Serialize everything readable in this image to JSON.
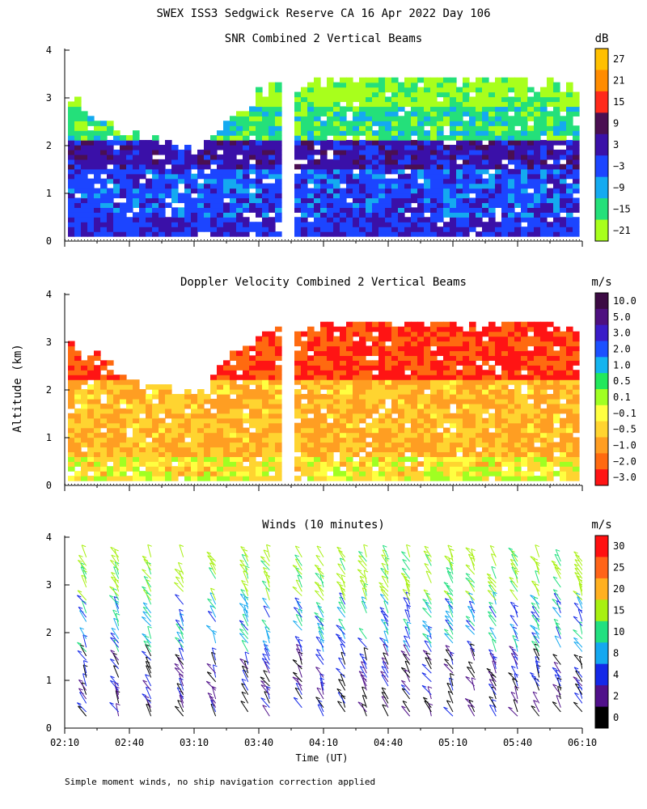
{
  "figure": {
    "title": "SWEX ISS3 Sedgwick Reserve CA  16 Apr 2022 Day 106",
    "ylabel": "Altitude (km)",
    "xlabel": "Time (UT)",
    "footnote": "Simple moment winds, no ship navigation correction applied"
  },
  "panels": [
    {
      "title": "SNR Combined 2 Vertical Beams",
      "unit": "dB",
      "colorbar": {
        "labels": [
          "27",
          "21",
          "15",
          "9",
          "3",
          "−3",
          "−9",
          "−15",
          "−21"
        ],
        "colors": [
          "#ffc000",
          "#ff8c00",
          "#ff2a1a",
          "#4a0f52",
          "#3a10a8",
          "#1c45ff",
          "#14aaf0",
          "#24e07a",
          "#a8ff1c"
        ]
      }
    },
    {
      "title": "Doppler Velocity Combined 2 Vertical Beams",
      "unit": "m/s",
      "colorbar": {
        "labels": [
          "10.0",
          "5.0",
          "3.0",
          "2.0",
          "1.0",
          "0.5",
          "0.1",
          "−0.1",
          "−0.5",
          "−1.0",
          "−2.0",
          "−3.0"
        ],
        "colors": [
          "#3c0a44",
          "#4e1080",
          "#3a1cc8",
          "#1c50ff",
          "#14b4ef",
          "#22e85c",
          "#a0ff22",
          "#ffff40",
          "#ffd430",
          "#ff9e22",
          "#ff6a10",
          "#ff1414"
        ]
      }
    },
    {
      "title": "Winds (10 minutes)",
      "unit": "m/s",
      "colorbar": {
        "labels": [
          "30",
          "25",
          "20",
          "15",
          "10",
          "8",
          "4",
          "2",
          "0"
        ],
        "colors": [
          "#ff1010",
          "#ff6418",
          "#ffb020",
          "#a8f010",
          "#22e080",
          "#14a8f0",
          "#1428e8",
          "#50108a",
          "#000000"
        ]
      }
    }
  ],
  "axes": {
    "y_ticks": [
      "0",
      "1",
      "2",
      "3",
      "4"
    ],
    "x_ticks": [
      "02:10",
      "02:40",
      "03:10",
      "03:40",
      "04:10",
      "04:40",
      "05:10",
      "05:40",
      "06:10"
    ]
  },
  "chart_data": [
    {
      "type": "heatmap",
      "title": "SNR Combined 2 Vertical Beams",
      "unit": "dB",
      "x_range": [
        "02:10",
        "06:10"
      ],
      "ylim": [
        0,
        4
      ],
      "colorscale_levels": [
        -21,
        -15,
        -9,
        -3,
        3,
        9,
        15,
        21,
        27
      ],
      "data_top_km": [
        {
          "time": "02:10",
          "top": 2.9
        },
        {
          "time": "02:40",
          "top": 2.2
        },
        {
          "time": "03:10",
          "top": 1.8
        },
        {
          "time": "03:30",
          "top": 2.8
        },
        {
          "time": "03:40",
          "top": 3.1
        },
        {
          "time": "04:10",
          "top": 3.3
        },
        {
          "time": "04:40",
          "top": 3.6
        },
        {
          "time": "05:10",
          "top": 3.3
        },
        {
          "time": "05:40",
          "top": 3.4
        },
        {
          "time": "06:00",
          "top": 3.2
        }
      ],
      "dominant_values_by_layer": [
        {
          "layer_km": [
            0.1,
            0.5
          ],
          "value_db": 3
        },
        {
          "layer_km": [
            0.5,
            1.5
          ],
          "value_db": 0
        },
        {
          "layer_km": [
            1.5,
            2.1
          ],
          "value_db": 6
        },
        {
          "layer_km": [
            2.1,
            2.8
          ],
          "value_db": -12
        },
        {
          "layer_km": [
            2.8,
            3.4
          ],
          "value_db": -18
        }
      ]
    },
    {
      "type": "heatmap",
      "title": "Doppler Velocity Combined 2 Vertical Beams",
      "unit": "m/s",
      "x_range": [
        "02:10",
        "06:10"
      ],
      "ylim": [
        0,
        4
      ],
      "colorscale_levels": [
        -3.0,
        -2.0,
        -1.0,
        -0.5,
        -0.1,
        0.1,
        0.5,
        1.0,
        2.0,
        3.0,
        5.0,
        10.0
      ],
      "dominant_values_by_layer": [
        {
          "layer_km": [
            0.1,
            0.6
          ],
          "value_ms": -0.1
        },
        {
          "layer_km": [
            0.6,
            2.2
          ],
          "value_ms": -0.5
        },
        {
          "layer_km": [
            2.2,
            3.4
          ],
          "value_ms": -2.0
        }
      ]
    },
    {
      "type": "scatter",
      "title": "Winds (10 minutes)",
      "unit": "m/s",
      "x_range": [
        "02:10",
        "06:10"
      ],
      "ylim": [
        0,
        4
      ],
      "profile_times": [
        "02:20",
        "02:35",
        "02:50",
        "03:05",
        "03:20",
        "03:35",
        "03:45",
        "04:00",
        "04:10",
        "04:20",
        "04:30",
        "04:40",
        "04:50",
        "05:00",
        "05:10",
        "05:20",
        "05:30",
        "05:40",
        "05:50",
        "06:00",
        "06:10"
      ],
      "speed_by_layer": [
        {
          "layer_km": [
            0.1,
            1.6
          ],
          "speed_ms": 3
        },
        {
          "layer_km": [
            1.6,
            2.6
          ],
          "speed_ms": 9
        },
        {
          "layer_km": [
            2.6,
            3.6
          ],
          "speed_ms": 16
        }
      ]
    }
  ]
}
